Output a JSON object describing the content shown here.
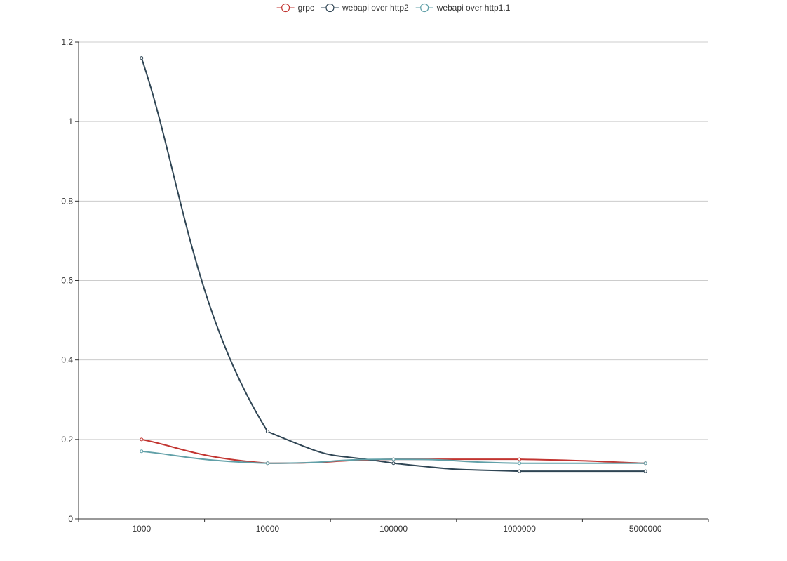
{
  "chart_data": {
    "type": "line",
    "smooth": true,
    "categories": [
      "1000",
      "10000",
      "100000",
      "1000000",
      "5000000"
    ],
    "series": [
      {
        "name": "grpc",
        "color": "#c23531",
        "values": [
          0.2,
          0.14,
          0.15,
          0.15,
          0.14
        ]
      },
      {
        "name": "webapi over http2",
        "color": "#2f4554",
        "values": [
          1.16,
          0.22,
          0.14,
          0.12,
          0.12
        ]
      },
      {
        "name": "webapi over http1.1",
        "color": "#61a0a8",
        "values": [
          0.17,
          0.14,
          0.15,
          0.14,
          0.14
        ]
      }
    ],
    "ylim": [
      0,
      1.2
    ],
    "yticks": [
      "0",
      "0.2",
      "0.4",
      "0.6",
      "0.8",
      "1",
      "1.2"
    ],
    "title": "",
    "xlabel": "",
    "ylabel": "",
    "grid": "horizontal",
    "legend_position": "top-center",
    "marker": "empty-circle"
  }
}
